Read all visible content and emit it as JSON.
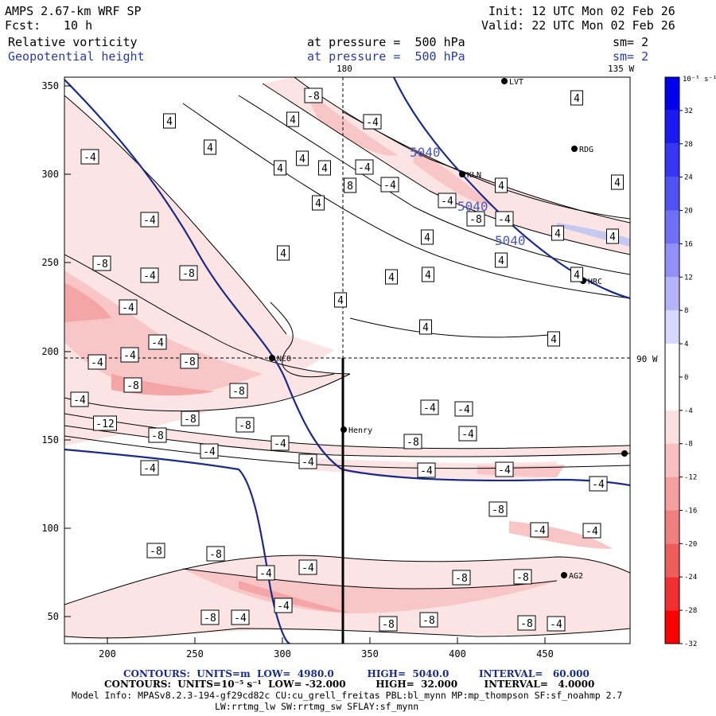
{
  "header": {
    "model": "AMPS 2.67-km WRF SP",
    "fcst_label": "Fcst:",
    "fcst_value": "10 h",
    "init": "Init: 12 UTC Mon 02 Feb 26",
    "valid": "Valid: 22 UTC Mon 02 Feb 26",
    "field1": "Relative vorticity",
    "field2": "Geopotential height",
    "pressure1": "at pressure =  500 hPa",
    "pressure2": "at pressure =  500 hPa",
    "sm1": "sm= 2",
    "sm2": "sm= 2"
  },
  "axes": {
    "x_ticks": [
      "200",
      "250",
      "300",
      "350",
      "400",
      "450"
    ],
    "y_ticks": [
      "50",
      "100",
      "150",
      "200",
      "250",
      "300",
      "350"
    ],
    "meridian_top": "180",
    "meridian_135": "135 W",
    "meridian_90": "90 W"
  },
  "colorbar": {
    "units": "10⁻⁵ s⁻¹",
    "labels": [
      "32",
      "28",
      "24",
      "20",
      "16",
      "12",
      "8",
      "4",
      "0",
      "-4",
      "-8",
      "-12",
      "-16",
      "-20",
      "-24",
      "-28",
      "-32"
    ],
    "colors": [
      "#0000ee",
      "#1a1af0",
      "#3636f2",
      "#5252f4",
      "#7070f6",
      "#9090f8",
      "#b4b4fa",
      "#d8d8fc",
      "#ffffff",
      "#ffffff",
      "#fce0e0",
      "#f8c0c0",
      "#f4a0a0",
      "#f08080",
      "#ee5c5c",
      "#f03030",
      "#ff0000"
    ]
  },
  "stations": [
    "LVT",
    "RDG",
    "KLN",
    "HRC",
    "NCO",
    "Henry",
    "AG2"
  ],
  "height_labels": [
    "5040",
    "5040",
    "5040"
  ],
  "vort_labels": {
    "pos4": [
      "4",
      "4",
      "4",
      "4",
      "4",
      "4",
      "4",
      "4",
      "4",
      "4",
      "4",
      "4",
      "4",
      "4",
      "4",
      "4",
      "4",
      "4",
      "4",
      "4",
      "4"
    ],
    "neg": [
      "-4",
      "-4",
      "-8",
      "-4",
      "-8",
      "-4",
      "-4",
      "-4",
      "-4",
      "-8",
      "-8",
      "-8",
      "-4",
      "-12",
      "-8",
      "-8",
      "-8",
      "-4",
      "-4",
      "-4",
      "-4",
      "-4",
      "-4",
      "-4",
      "-4",
      "-8",
      "-4",
      "-4",
      "-4",
      "-8",
      "-4",
      "-4",
      "-4",
      "-4",
      "-8",
      "-4",
      "-4",
      "-8",
      "-8",
      "-4",
      "-4",
      "-8",
      "-8",
      "-4",
      "-8"
    ],
    "pos8": [
      "8"
    ]
  },
  "footer": {
    "contours1": "CONTOURS:  UNITS=m  LOW=  4980.0          HIGH=  5040.0         INTERVAL=   60.000",
    "contours2": "CONTOURS:  UNITS=10⁻⁵ s⁻¹  LOW= -32.000         HIGH=  32.000        INTERVAL=   4.0000",
    "model_info": "Model Info: MPASv8.2.3-194-gf29cd82c CU:cu_grell_freitas PBL:bl_mynn MP:mp_thompson SF:sf_noahmp 2.7",
    "model_info2": "LW:rrtmg_lw SW:rrtmg_sw SFLAY:sf_mynn"
  }
}
